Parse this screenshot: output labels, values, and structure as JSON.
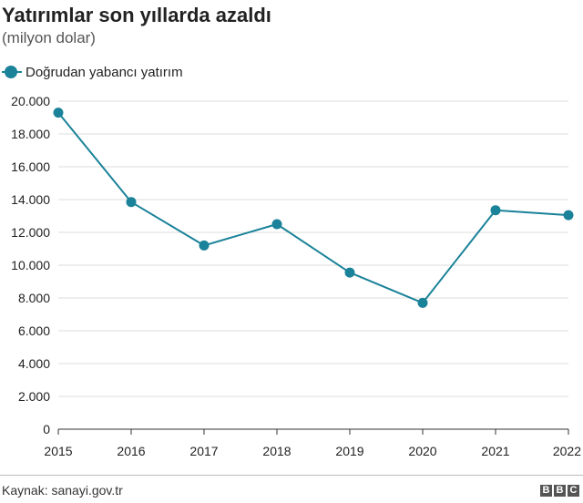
{
  "title": "Yatırımlar son yıllarda azaldı",
  "subtitle": "(milyon dolar)",
  "source": "Kaynak: sanayi.gov.tr",
  "logo": [
    "B",
    "B",
    "C"
  ],
  "colors": {
    "series": "#1a8299",
    "grid": "#dddddd",
    "axis": "#333333"
  },
  "chart_data": {
    "type": "line",
    "x": [
      "2015",
      "2016",
      "2017",
      "2018",
      "2019",
      "2020",
      "2021",
      "2022"
    ],
    "series": [
      {
        "name": "Doğrudan yabancı yatırım",
        "values": [
          19300,
          13850,
          11200,
          12500,
          9550,
          7700,
          13350,
          13050
        ]
      }
    ],
    "ylim": [
      0,
      20000
    ],
    "yticks": [
      0,
      2000,
      4000,
      6000,
      8000,
      10000,
      12000,
      14000,
      16000,
      18000,
      20000
    ],
    "ytick_labels": [
      "0",
      "2.000",
      "4.000",
      "6.000",
      "8.000",
      "10.000",
      "12.000",
      "14.000",
      "16.000",
      "18.000",
      "20.000"
    ],
    "grid": true,
    "legend": "top-left",
    "markers": true
  }
}
